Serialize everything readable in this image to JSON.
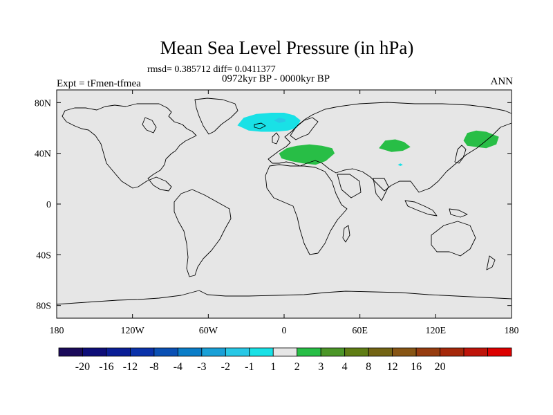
{
  "chart_data": {
    "type": "contour-map",
    "title": "Mean Sea Level Pressure (in hPa)",
    "stats_label": "rmsd= 0.385712 diff= 0.0411377",
    "period_label": "0972kyr BP - 0000kyr BP",
    "experiment_label": "Expt = tFmen-tfmea",
    "season_label": "ANN",
    "xlim": [
      -180,
      180
    ],
    "ylim": [
      -90,
      90
    ],
    "x_ticks": [
      {
        "value": -180,
        "label": "180"
      },
      {
        "value": -120,
        "label": "120W"
      },
      {
        "value": -60,
        "label": "60W"
      },
      {
        "value": 0,
        "label": "0"
      },
      {
        "value": 60,
        "label": "60E"
      },
      {
        "value": 120,
        "label": "120E"
      },
      {
        "value": 180,
        "label": "180"
      }
    ],
    "y_ticks": [
      {
        "value": 80,
        "label": "80N"
      },
      {
        "value": 40,
        "label": "40N"
      },
      {
        "value": 0,
        "label": "0"
      },
      {
        "value": -40,
        "label": "40S"
      },
      {
        "value": -80,
        "label": "80S"
      }
    ],
    "colorbar": {
      "colors": [
        "#1a0a5a",
        "#0d0d78",
        "#0a1e96",
        "#0a32aa",
        "#0a50b4",
        "#0a7dc8",
        "#19a0d7",
        "#28c8e6",
        "#19e1e6",
        "#e6e6e6",
        "#28be46",
        "#4b9628",
        "#5f7d14",
        "#736414",
        "#875514",
        "#963c0f",
        "#a5280a",
        "#be140a",
        "#dc0000"
      ],
      "labels": [
        "-20",
        "-16",
        "-12",
        "-8",
        "-4",
        "-3",
        "-2",
        "-1",
        "1",
        "2",
        "3",
        "4",
        "8",
        "12",
        "16",
        "20"
      ],
      "label_after_box": [
        1,
        2,
        3,
        4,
        5,
        6,
        7,
        8,
        9,
        10,
        11,
        12,
        13,
        14,
        15,
        16
      ]
    },
    "anomalies": [
      {
        "name": "north-atlantic-low",
        "level": "-1",
        "color": "#19e1e6",
        "polygon": [
          [
            -37,
            62
          ],
          [
            -32,
            68
          ],
          [
            -22,
            71
          ],
          [
            -10,
            72
          ],
          [
            0,
            72
          ],
          [
            8,
            70
          ],
          [
            13,
            66
          ],
          [
            10,
            60
          ],
          [
            3,
            58
          ],
          [
            -8,
            57
          ],
          [
            -18,
            57
          ],
          [
            -28,
            58
          ]
        ]
      },
      {
        "name": "north-atlantic-low-core",
        "level": "-2",
        "color": "#28c8e6",
        "polygon": [
          [
            -8,
            66
          ],
          [
            -4,
            68
          ],
          [
            1,
            67
          ],
          [
            1,
            65
          ],
          [
            -4,
            64
          ]
        ]
      },
      {
        "name": "mediterranean-high",
        "level": "1",
        "color": "#28be46",
        "polygon": [
          [
            -4,
            40
          ],
          [
            2,
            44
          ],
          [
            10,
            46
          ],
          [
            20,
            47
          ],
          [
            30,
            46
          ],
          [
            38,
            44
          ],
          [
            40,
            40
          ],
          [
            33,
            34
          ],
          [
            25,
            31
          ],
          [
            15,
            32
          ],
          [
            5,
            34
          ],
          [
            -2,
            36
          ]
        ]
      },
      {
        "name": "central-asia-high",
        "level": "1",
        "color": "#28be46",
        "polygon": [
          [
            75,
            44
          ],
          [
            80,
            50
          ],
          [
            88,
            51
          ],
          [
            95,
            49
          ],
          [
            100,
            45
          ],
          [
            94,
            42
          ],
          [
            85,
            41
          ]
        ]
      },
      {
        "name": "central-asia-small",
        "level": "-1",
        "color": "#19e1e6",
        "polygon": [
          [
            90,
            31
          ],
          [
            92,
            32
          ],
          [
            94,
            31
          ],
          [
            92,
            30
          ]
        ]
      },
      {
        "name": "kamchatka-high",
        "level": "1",
        "color": "#28be46",
        "polygon": [
          [
            142,
            50
          ],
          [
            145,
            56
          ],
          [
            152,
            58
          ],
          [
            160,
            57
          ],
          [
            170,
            53
          ],
          [
            168,
            47
          ],
          [
            160,
            44
          ],
          [
            152,
            45
          ],
          [
            145,
            46
          ]
        ]
      }
    ]
  }
}
